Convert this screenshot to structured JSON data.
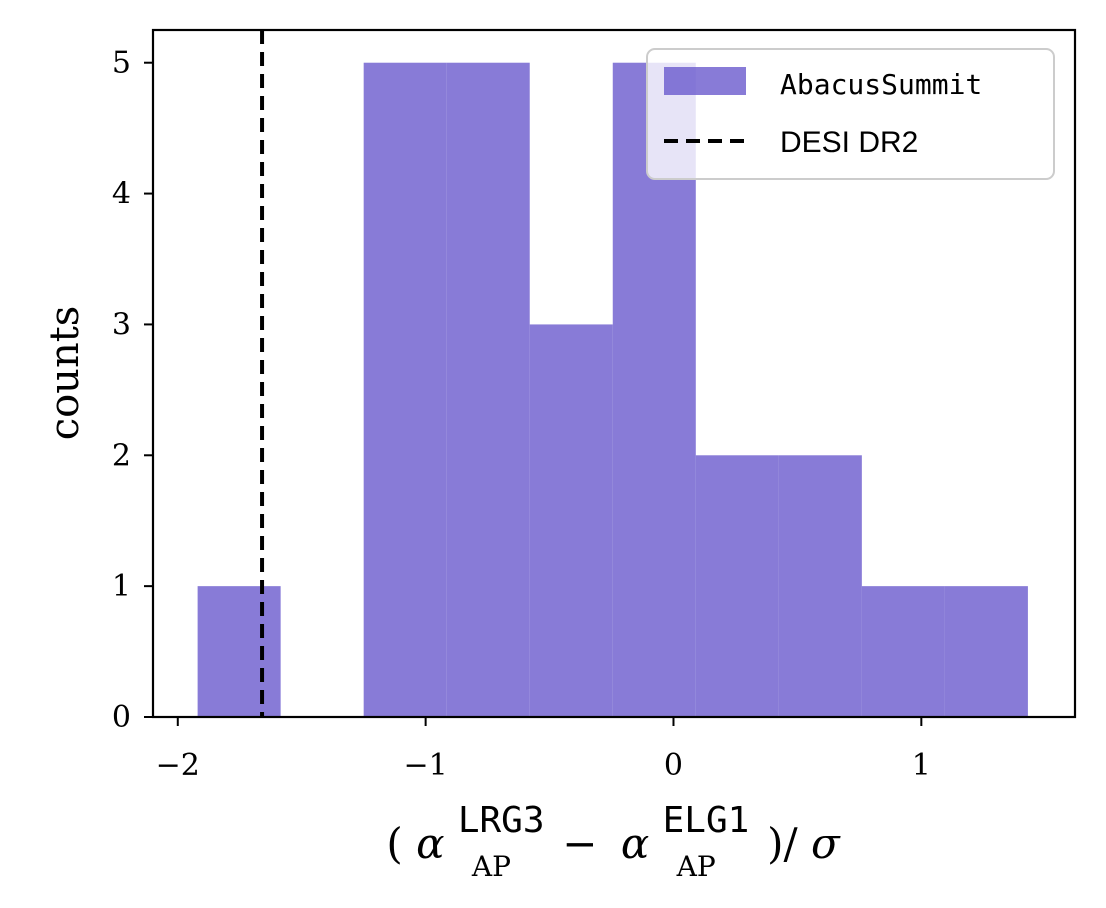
{
  "chart_data": {
    "type": "bar",
    "bin_edges": [
      -1.92,
      -1.585,
      -1.25,
      -0.915,
      -0.58,
      -0.245,
      0.09,
      0.425,
      0.76,
      1.095,
      1.43
    ],
    "series": [
      {
        "name": "AbacusSummit",
        "counts": [
          1,
          0,
          5,
          5,
          3,
          5,
          2,
          2,
          1,
          1
        ],
        "color": "#6a5acd"
      }
    ],
    "reference_lines": [
      {
        "name": "DESI DR2",
        "x": -1.66,
        "style": "dashed",
        "color": "#000000"
      }
    ],
    "xlim": [
      -2.1,
      1.62
    ],
    "ylim": [
      0,
      5.25
    ],
    "xticks": [
      {
        "value": -2,
        "label": "−2"
      },
      {
        "value": -1,
        "label": "−1"
      },
      {
        "value": 0,
        "label": "0"
      },
      {
        "value": 1,
        "label": "1"
      }
    ],
    "yticks": [
      {
        "value": 0,
        "label": "0"
      },
      {
        "value": 1,
        "label": "1"
      },
      {
        "value": 2,
        "label": "2"
      },
      {
        "value": 3,
        "label": "3"
      },
      {
        "value": 4,
        "label": "4"
      },
      {
        "value": 5,
        "label": "5"
      }
    ],
    "ylabel": "counts",
    "xlabel": {
      "open": "(",
      "alpha": "α",
      "sup1": "LRG3",
      "sub": "AP",
      "minus": "−",
      "sup2": "ELG1",
      "close": ")/",
      "sigma": "σ"
    },
    "legend": {
      "placement": "top-right"
    },
    "grid": false
  }
}
